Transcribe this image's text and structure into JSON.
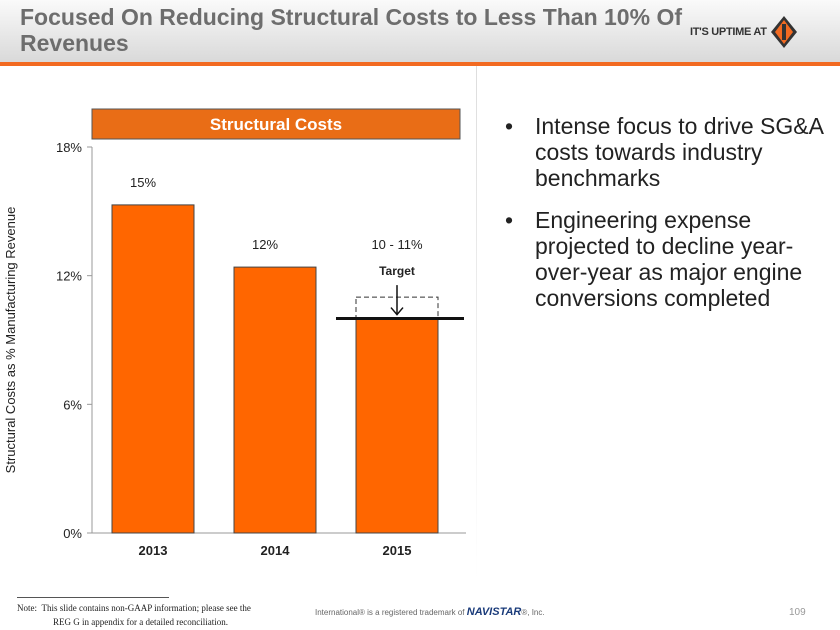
{
  "header": {
    "title": "Focused On Reducing Structural Costs to Less Than 10% Of Revenues",
    "logo_text": "IT'S UPTIME AT"
  },
  "chart_data": {
    "type": "bar",
    "title": "Structural Costs",
    "categories": [
      "2013",
      "2014",
      "2015"
    ],
    "values": [
      15.3,
      12.4,
      10.0
    ],
    "data_labels": [
      "15%",
      "12%",
      "10 - 11%"
    ],
    "target_label": "Target",
    "target_range": [
      10,
      11
    ],
    "ylabel": "Structural Costs as % Manufacturing Revenue",
    "xlabel": "",
    "ylim": [
      0,
      18
    ],
    "yticks": [
      0,
      6,
      12,
      18
    ],
    "ytick_labels": [
      "0%",
      "6%",
      "12%",
      "18%"
    ],
    "grid": false,
    "bar_color": "#ff6600",
    "title_bg": "#e96d16"
  },
  "bullets": [
    "Intense focus to drive SG&A costs towards industry benchmarks",
    "Engineering expense projected to decline year-over-year as major engine conversions completed"
  ],
  "footer": {
    "note_label": "Note:",
    "note_line1": "This slide contains non-GAAP information; please see the",
    "note_line2": "REG G in appendix for a detailed reconciliation.",
    "trademark_pre": "International® is a registered trademark of",
    "trademark_brand": "NAVISTAR",
    "trademark_post": "®, Inc.",
    "page": "109"
  }
}
